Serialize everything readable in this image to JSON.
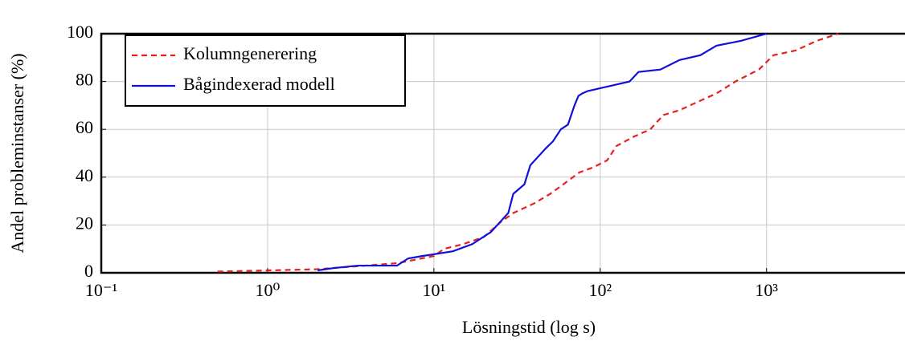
{
  "chart_data": {
    "type": "line",
    "xlabel": "Lösningstid (log s)",
    "ylabel": "Andel probleminstanser (%)",
    "xscale": "log",
    "xlim": [
      0.1,
      6800
    ],
    "ylim": [
      0,
      100
    ],
    "xticks": [
      {
        "value": 0.1,
        "label": "10⁻¹"
      },
      {
        "value": 1,
        "label": "10⁰"
      },
      {
        "value": 10,
        "label": "10¹"
      },
      {
        "value": 100,
        "label": "10²"
      },
      {
        "value": 1000,
        "label": "10³"
      }
    ],
    "yticks": [
      0,
      20,
      40,
      60,
      80,
      100
    ],
    "grid": true,
    "legend": "upper left",
    "series": [
      {
        "name": "Kolumngenerering",
        "color": "#e8201c",
        "dash": true,
        "x": [
          0.5,
          2,
          6,
          10,
          11.5,
          15,
          20,
          25,
          30,
          40,
          50,
          60,
          75,
          90,
          110,
          125,
          160,
          200,
          240,
          300,
          400,
          500,
          650,
          900,
          1100,
          1500,
          2000,
          2700
        ],
        "values": [
          0.5,
          1.5,
          4,
          7,
          10,
          12,
          15,
          21,
          25,
          29,
          33,
          37,
          42,
          44,
          47,
          53,
          57,
          60,
          66,
          68,
          72,
          75,
          80,
          85,
          91,
          93,
          97,
          100
        ]
      },
      {
        "name": "Bågindexerad modell",
        "color": "#1010d8",
        "dash": false,
        "x": [
          2,
          2.5,
          3.5,
          6,
          7,
          8.5,
          9.5,
          13,
          17,
          22,
          28,
          30,
          35,
          38,
          47,
          52,
          58,
          64,
          70,
          74,
          78,
          84,
          150,
          170,
          230,
          300,
          400,
          500,
          700,
          1000
        ],
        "values": [
          1,
          2,
          3,
          3,
          6,
          7,
          7.5,
          9,
          12,
          17,
          25,
          33,
          37,
          45,
          52,
          55,
          60,
          62,
          70,
          74,
          75,
          76,
          80,
          84,
          85,
          89,
          91,
          95,
          97,
          100
        ]
      }
    ]
  }
}
